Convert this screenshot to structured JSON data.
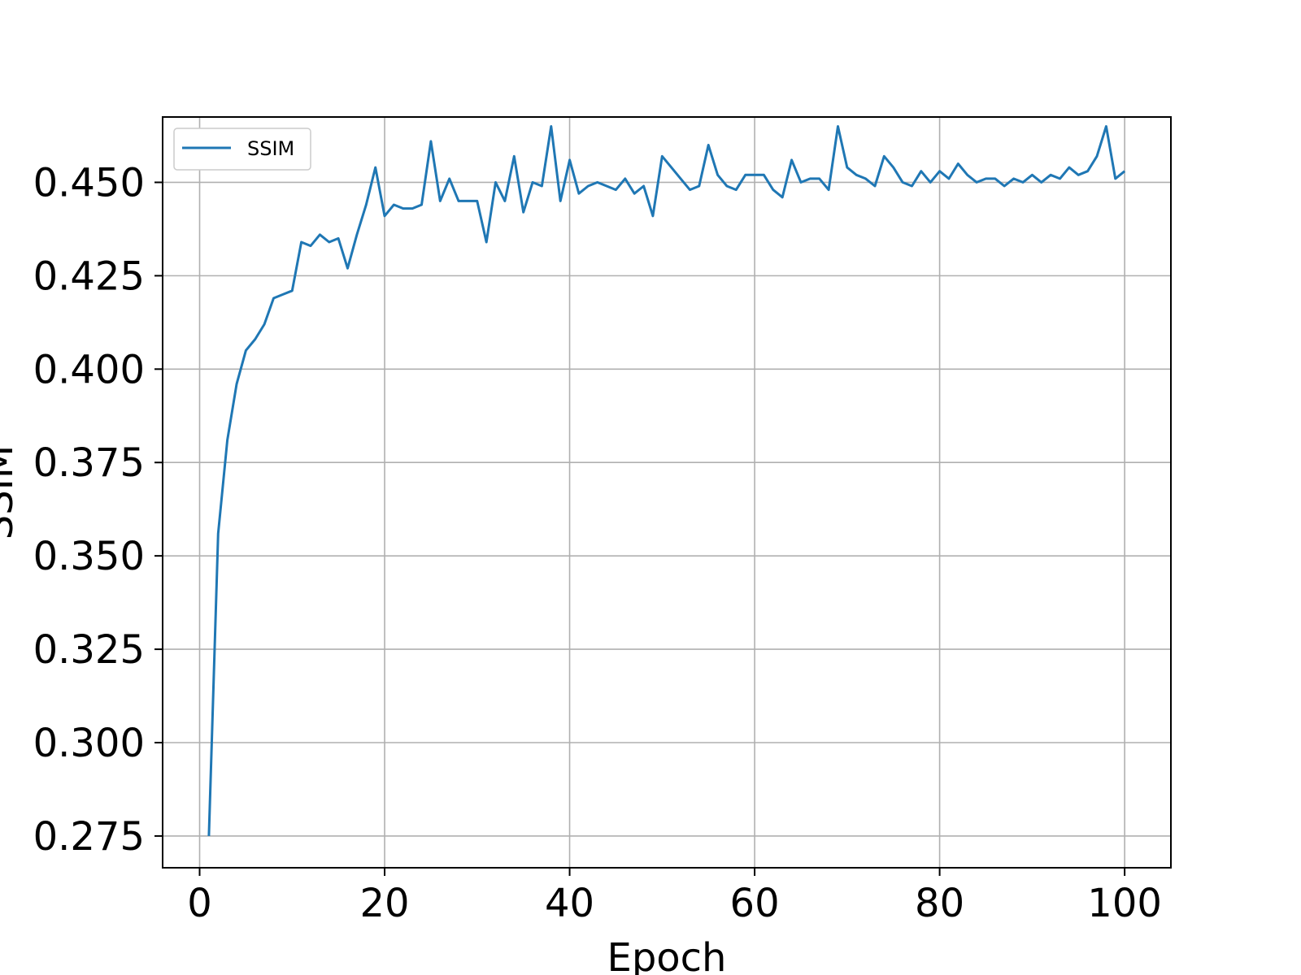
{
  "chart_data": {
    "type": "line",
    "title": "",
    "xlabel": "Epoch",
    "ylabel": "SSIM",
    "xlim": [
      -4,
      105
    ],
    "ylim": [
      0.2665,
      0.4675
    ],
    "xticks": [
      0,
      20,
      40,
      60,
      80,
      100
    ],
    "yticks": [
      0.275,
      0.3,
      0.325,
      0.35,
      0.375,
      0.4,
      0.425,
      0.45
    ],
    "xtick_labels": [
      "0",
      "20",
      "40",
      "60",
      "80",
      "100"
    ],
    "ytick_labels": [
      "0.275",
      "0.300",
      "0.325",
      "0.350",
      "0.375",
      "0.400",
      "0.425",
      "0.450"
    ],
    "grid": true,
    "legend_position": "top-left",
    "colors": {
      "series": "#1f77b4",
      "grid": "#b0b0b0",
      "axes": "#000000"
    },
    "series": [
      {
        "name": "SSIM",
        "x": [
          1,
          2,
          3,
          4,
          5,
          6,
          7,
          8,
          9,
          10,
          11,
          12,
          13,
          14,
          15,
          16,
          17,
          18,
          19,
          20,
          21,
          22,
          23,
          24,
          25,
          26,
          27,
          28,
          29,
          30,
          31,
          32,
          33,
          34,
          35,
          36,
          37,
          38,
          39,
          40,
          41,
          42,
          43,
          44,
          45,
          46,
          47,
          48,
          49,
          50,
          51,
          52,
          53,
          54,
          55,
          56,
          57,
          58,
          59,
          60,
          61,
          62,
          63,
          64,
          65,
          66,
          67,
          68,
          69,
          70,
          71,
          72,
          73,
          74,
          75,
          76,
          77,
          78,
          79,
          80,
          81,
          82,
          83,
          84,
          85,
          86,
          87,
          88,
          89,
          90,
          91,
          92,
          93,
          94,
          95,
          96,
          97,
          98,
          99,
          100
        ],
        "values": [
          0.275,
          0.356,
          0.381,
          0.396,
          0.405,
          0.408,
          0.412,
          0.419,
          0.42,
          0.421,
          0.434,
          0.433,
          0.436,
          0.434,
          0.435,
          0.427,
          0.436,
          0.444,
          0.454,
          0.441,
          0.444,
          0.443,
          0.443,
          0.444,
          0.461,
          0.445,
          0.451,
          0.445,
          0.445,
          0.445,
          0.434,
          0.45,
          0.445,
          0.457,
          0.442,
          0.45,
          0.449,
          0.465,
          0.445,
          0.456,
          0.447,
          0.449,
          0.45,
          0.449,
          0.448,
          0.451,
          0.447,
          0.449,
          0.441,
          0.457,
          0.454,
          0.451,
          0.448,
          0.449,
          0.46,
          0.452,
          0.449,
          0.448,
          0.452,
          0.452,
          0.452,
          0.448,
          0.446,
          0.456,
          0.45,
          0.451,
          0.451,
          0.448,
          0.465,
          0.454,
          0.452,
          0.451,
          0.449,
          0.457,
          0.454,
          0.45,
          0.449,
          0.453,
          0.45,
          0.453,
          0.451,
          0.455,
          0.452,
          0.45,
          0.451,
          0.451,
          0.449,
          0.451,
          0.45,
          0.452,
          0.45,
          0.452,
          0.451,
          0.454,
          0.452,
          0.453,
          0.457,
          0.465,
          0.451,
          0.453
        ]
      }
    ]
  }
}
